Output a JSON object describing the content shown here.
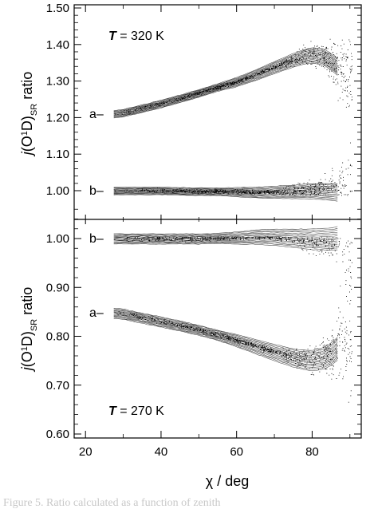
{
  "chart_data": [
    {
      "type": "line",
      "ylabel": "j(O¹D)SR ratio",
      "ylabel_parts": {
        "pre": "j",
        "mid": "(O",
        "sup": "1",
        "post": "D)",
        "sub": "SR",
        "tail": " ratio"
      },
      "ylim": [
        1.0,
        1.5
      ],
      "xlim": [
        17,
        93
      ],
      "yticks": [
        1.0,
        1.1,
        1.2,
        1.3,
        1.4,
        1.5
      ],
      "ytick_labels": [
        "1.00",
        "1.10",
        "1.20",
        "1.30",
        "1.40",
        "1.50"
      ],
      "annotation": {
        "T": "T",
        "rest": " = 320 K"
      },
      "series": [
        {
          "name": "a–",
          "x": [
            28,
            30,
            35,
            40,
            45,
            50,
            55,
            60,
            65,
            70,
            75,
            78,
            80,
            83,
            85,
            88,
            90
          ],
          "y": [
            1.21,
            1.213,
            1.225,
            1.238,
            1.252,
            1.267,
            1.283,
            1.298,
            1.317,
            1.338,
            1.358,
            1.368,
            1.372,
            1.368,
            1.355,
            1.33,
            1.31
          ]
        },
        {
          "name": "b–",
          "x": [
            28,
            35,
            40,
            45,
            50,
            55,
            60,
            65,
            70,
            75,
            80,
            85,
            90
          ],
          "y": [
            1.0,
            1.0,
            1.0,
            0.999,
            0.998,
            0.998,
            0.997,
            0.996,
            0.997,
            0.998,
            1.0,
            0.998,
            0.995
          ]
        }
      ]
    },
    {
      "type": "line",
      "xlabel": "χ / deg",
      "ylabel": "j(O¹D)SR ratio",
      "ylabel_parts": {
        "pre": "j",
        "mid": "(O",
        "sup": "1",
        "post": "D)",
        "sub": "SR",
        "tail": " ratio"
      },
      "ylim": [
        0.6,
        1.07
      ],
      "xlim": [
        17,
        93
      ],
      "xticks": [
        20,
        40,
        60,
        80
      ],
      "xtick_labels": [
        "20",
        "40",
        "60",
        "80"
      ],
      "yticks": [
        0.6,
        0.7,
        0.8,
        0.9,
        1.0
      ],
      "ytick_labels": [
        "0.60",
        "0.70",
        "0.80",
        "0.90",
        "1.00"
      ],
      "annotation": {
        "T": "T",
        "rest": " = 270 K"
      },
      "series": [
        {
          "name": "b–",
          "x": [
            28,
            35,
            40,
            45,
            50,
            55,
            60,
            65,
            70,
            75,
            80,
            85,
            90
          ],
          "y": [
            1.0,
            1.0,
            1.0,
            1.0,
            1.0,
            1.001,
            1.002,
            1.004,
            1.004,
            1.002,
            1.0,
            1.001,
            1.005
          ]
        },
        {
          "name": "a–",
          "x": [
            28,
            30,
            35,
            40,
            45,
            50,
            55,
            60,
            65,
            70,
            75,
            78,
            80,
            83,
            85,
            88,
            90
          ],
          "y": [
            0.848,
            0.846,
            0.838,
            0.83,
            0.822,
            0.813,
            0.803,
            0.792,
            0.78,
            0.768,
            0.757,
            0.753,
            0.752,
            0.756,
            0.765,
            0.785,
            0.8
          ]
        }
      ]
    }
  ],
  "caption": "Figure 5.  Ratio calculated as a function of zenith"
}
